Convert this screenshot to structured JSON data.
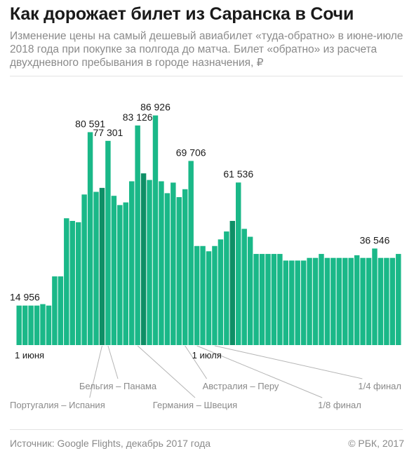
{
  "title": "Как дорожает билет из Саранска в Сочи",
  "subtitle": "Изменение цены на самый дешевый авиабилет «туда-обратно» в июне-июле 2018 года при покупке за полгода до матча. Билет «обратно» из расчета двухдневного пребывания в городе назначения, ₽",
  "source": "Источник: Google Flights, декабрь 2017 года",
  "credit": "© РБК, 2017",
  "colors": {
    "bar": "#1ab888",
    "highlight": "#0f8f66"
  },
  "chart_data": {
    "type": "bar",
    "ylim": [
      0,
      90000
    ],
    "values": [
      14956,
      14956,
      14956,
      14956,
      15500,
      14956,
      26000,
      26000,
      48000,
      47000,
      46500,
      57000,
      80591,
      58000,
      59500,
      77301,
      56500,
      53000,
      54000,
      62000,
      83126,
      65000,
      62500,
      86926,
      62000,
      57500,
      61500,
      56000,
      59000,
      69706,
      37500,
      37500,
      35500,
      37500,
      40000,
      43000,
      47000,
      61536,
      44000,
      41000,
      34500,
      34500,
      34500,
      34500,
      34500,
      32000,
      32000,
      32000,
      32000,
      33000,
      33000,
      34500,
      33000,
      33000,
      33000,
      33000,
      33000,
      34000,
      33000,
      33000,
      36546,
      33000,
      33000,
      33000,
      34500
    ],
    "highlight_index": [
      14,
      21,
      36
    ],
    "value_labels": [
      {
        "index": 0,
        "text": "14 956"
      },
      {
        "index": 12,
        "text": "80 591"
      },
      {
        "index": 15,
        "text": "77 301"
      },
      {
        "index": 20,
        "text": "83 126"
      },
      {
        "index": 23,
        "text": "86 926"
      },
      {
        "index": 29,
        "text": "69 706"
      },
      {
        "index": 37,
        "text": "61 536"
      },
      {
        "index": 60,
        "text": "36 546"
      }
    ],
    "date_labels": [
      {
        "index": 0,
        "text": "1 июня"
      },
      {
        "index": 30,
        "text": "1 июля"
      }
    ],
    "annotations": [
      {
        "index": 14,
        "text": "Португалия – Испания",
        "row": 2
      },
      {
        "index": 15,
        "text": "Бельгия – Панама",
        "row": 1
      },
      {
        "index": 20,
        "text": "Германия – Швеция",
        "row": 2
      },
      {
        "index": 28,
        "text": "Австралия – Перу",
        "row": 1
      },
      {
        "index": 30,
        "text": "1/8 финал",
        "row": 2
      },
      {
        "index": 33,
        "text": "1/4 финал",
        "row": 1
      }
    ]
  }
}
